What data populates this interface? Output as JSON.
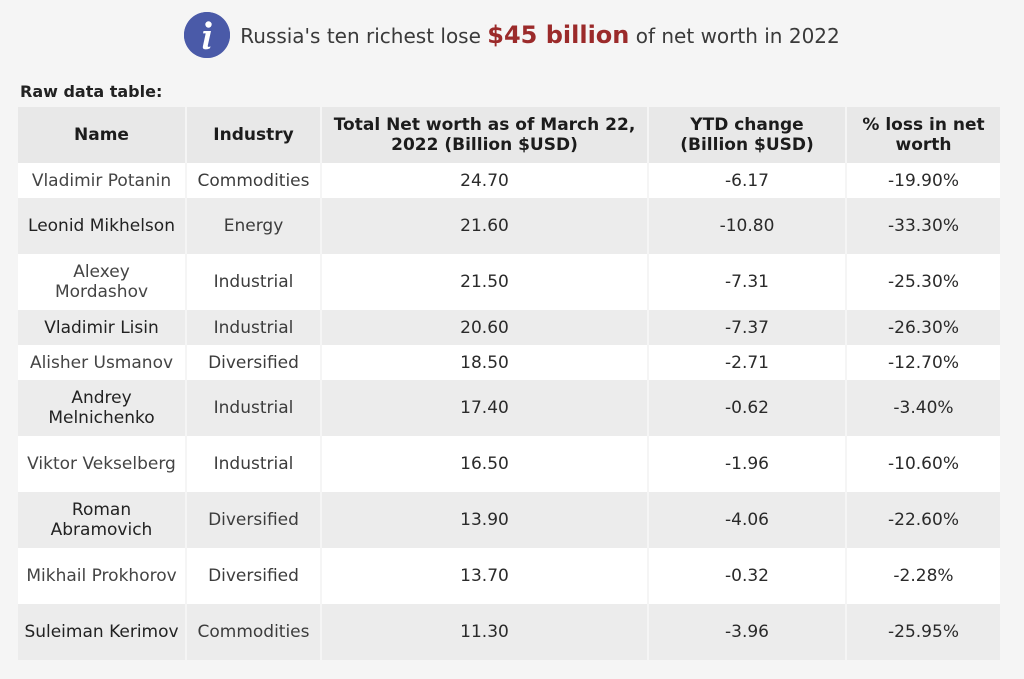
{
  "header": {
    "icon": "info-icon",
    "icon_color": "#4a5aa8",
    "title_before": "Russia's ten richest lose ",
    "title_highlight": "$45 billion",
    "title_after": " of net worth in 2022",
    "highlight_color": "#9b2a2a"
  },
  "table_label": "Raw data table:",
  "columns": [
    "Name",
    "Industry",
    "Total Net worth as of March 22, 2022 (Billion $USD)",
    "YTD change (Billion $USD)",
    "% loss in net worth"
  ],
  "rows": [
    {
      "name": "Vladimir Potanin",
      "industry": "Commodities",
      "net_worth": "24.70",
      "ytd": "-6.17",
      "pct": "-19.90%"
    },
    {
      "name": "Leonid Mikhelson",
      "industry": "Energy",
      "net_worth": "21.60",
      "ytd": "-10.80",
      "pct": "-33.30%"
    },
    {
      "name": "Alexey Mordashov",
      "industry": "Industrial",
      "net_worth": "21.50",
      "ytd": "-7.31",
      "pct": "-25.30%"
    },
    {
      "name": "Vladimir Lisin",
      "industry": "Industrial",
      "net_worth": "20.60",
      "ytd": "-7.37",
      "pct": "-26.30%"
    },
    {
      "name": "Alisher Usmanov",
      "industry": "Diversified",
      "net_worth": "18.50",
      "ytd": "-2.71",
      "pct": "-12.70%"
    },
    {
      "name": "Andrey Melnichenko",
      "industry": "Industrial",
      "net_worth": "17.40",
      "ytd": "-0.62",
      "pct": "-3.40%"
    },
    {
      "name": "Viktor Vekselberg",
      "industry": "Industrial",
      "net_worth": "16.50",
      "ytd": "-1.96",
      "pct": "-10.60%"
    },
    {
      "name": "Roman Abramovich",
      "industry": "Diversified",
      "net_worth": "13.90",
      "ytd": "-4.06",
      "pct": "-22.60%"
    },
    {
      "name": "Mikhail Prokhorov",
      "industry": "Diversified",
      "net_worth": "13.70",
      "ytd": "-0.32",
      "pct": "-2.28%"
    },
    {
      "name": "Suleiman Kerimov",
      "industry": "Commodities",
      "net_worth": "11.30",
      "ytd": "-3.96",
      "pct": "-25.95%"
    }
  ]
}
